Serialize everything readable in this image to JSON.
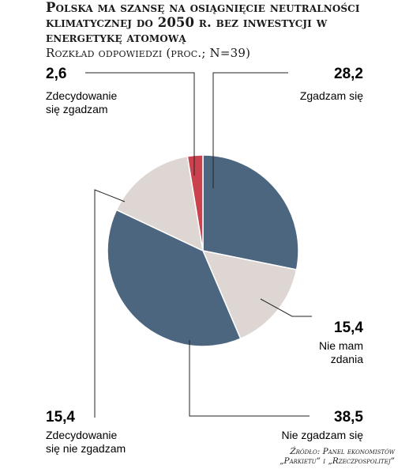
{
  "chart_data": {
    "type": "pie",
    "title": "Polska ma szansę na osiągnięcie neutralności klimatycznej do 2050 r. bez inwestycji w energetykę atomową",
    "subtitle": "Rozkład odpowiedzi (proc.; N=39)",
    "slices": [
      {
        "label_lines": [
          "Zgadzam się"
        ],
        "value": 28.2,
        "value_text": "28,2",
        "color": "#4d6680"
      },
      {
        "label_lines": [
          "Nie mam",
          "zdania"
        ],
        "value": 15.4,
        "value_text": "15,4",
        "color": "#ddd6d3"
      },
      {
        "label_lines": [
          "Nie zgadzam się"
        ],
        "value": 38.5,
        "value_text": "38,5",
        "color": "#4d6680"
      },
      {
        "label_lines": [
          "Zdecydowanie",
          "się nie zgadzam"
        ],
        "value": 15.4,
        "value_text": "15,4",
        "color": "#ddd6d3"
      },
      {
        "label_lines": [
          "Zdecydowanie",
          "się zgadzam"
        ],
        "value": 2.6,
        "value_text": "2,6",
        "color": "#c9424e"
      }
    ]
  },
  "source": {
    "line1": "Źródło: Panel ekonomistów",
    "line2": "„Parkietu” i „Rzeczpospolitej”"
  }
}
